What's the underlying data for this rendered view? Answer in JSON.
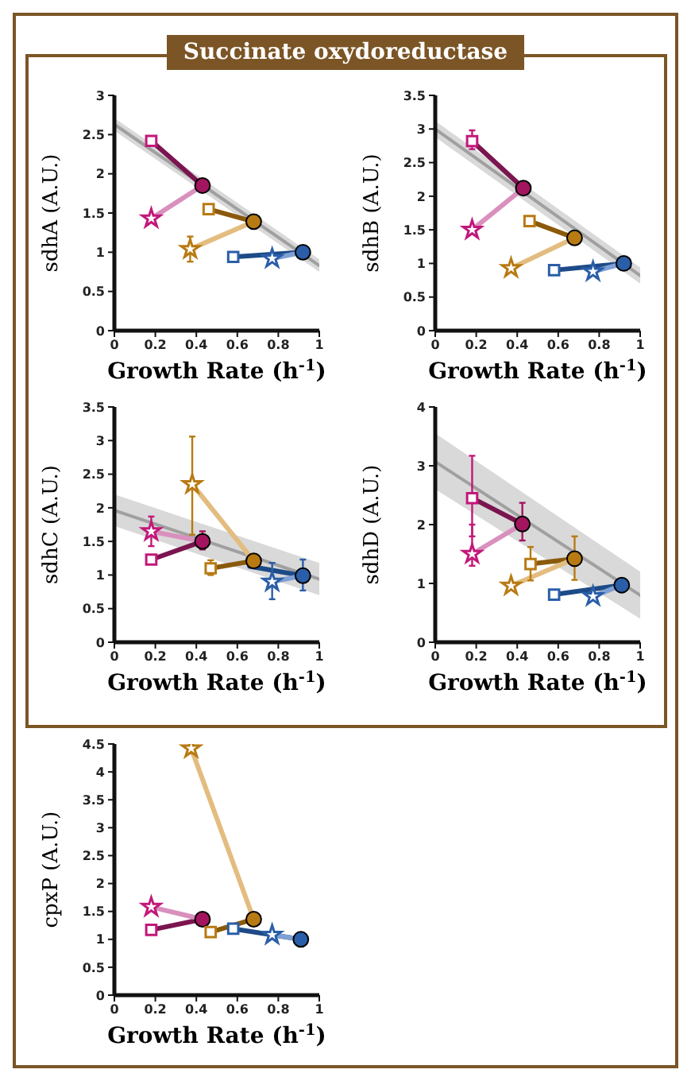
{
  "chart_data": [
    {
      "type": "line",
      "title": "Succinate oxydoreductase",
      "xlabel": "Growth Rate (h$^{-1}$)",
      "ylabel": "sdhA (A.U.)",
      "xlim": [
        0,
        1
      ],
      "xticks": [
        0,
        0.2,
        0.4,
        0.6,
        0.8,
        1
      ],
      "ylim": [
        0,
        3
      ],
      "yticks": [
        0,
        0.5,
        1,
        1.5,
        2,
        2.5,
        3
      ],
      "grid": false,
      "legend": false,
      "series": [
        {
          "x": [
            0,
            1
          ],
          "values": [
            2.63,
            0.83
          ],
          "lower": [
            2.55,
            0.75
          ],
          "upper": [
            2.71,
            0.91
          ],
          "color": "#a0a0a0",
          "marker": "none"
        },
        {
          "type": "line",
          "x": [
            0.43,
            0.18
          ],
          "values": [
            1.85,
            2.42
          ],
          "color": "#7b1550",
          "marker": "none"
        },
        {
          "type": "line",
          "x": [
            0.43,
            0.18
          ],
          "values": [
            1.85,
            1.43
          ],
          "color": "#d990bd",
          "marker": "none"
        },
        {
          "type": "line",
          "x": [
            0.68,
            0.46
          ],
          "values": [
            1.39,
            1.55
          ],
          "color": "#8a5a0c",
          "marker": "none"
        },
        {
          "type": "line",
          "x": [
            0.68,
            0.37
          ],
          "values": [
            1.39,
            1.04
          ],
          "color": "#e3bd80",
          "marker": "none"
        },
        {
          "type": "line",
          "x": [
            0.92,
            0.58
          ],
          "values": [
            1.0,
            0.94
          ],
          "color": "#1e4b87",
          "marker": "none"
        },
        {
          "type": "line",
          "x": [
            0.92,
            0.77
          ],
          "values": [
            1.0,
            0.92
          ],
          "color": "#7fa0d4",
          "marker": "none"
        },
        {
          "type": "scatter",
          "x": [
            0.43,
            0.68,
            0.92
          ],
          "values": [
            1.85,
            1.39,
            1.0
          ],
          "colors": [
            "#a3155f",
            "#b87a12",
            "#2a5ea8"
          ],
          "marker": "circle"
        },
        {
          "type": "scatter",
          "x": [
            0.18,
            0.46,
            0.58
          ],
          "values": [
            2.42,
            1.55,
            0.94
          ],
          "colors": [
            "#c2187a",
            "#b87a12",
            "#2a5ea8"
          ],
          "marker": "square"
        },
        {
          "type": "scatter",
          "x": [
            0.18,
            0.37,
            0.77
          ],
          "values": [
            1.43,
            1.04,
            0.92
          ],
          "colors": [
            "#c2187a",
            "#b87a12",
            "#2a5ea8"
          ],
          "marker": "star",
          "errors": [
            null,
            [
              0.88,
              1.2
            ],
            null
          ]
        }
      ]
    },
    {
      "type": "line",
      "xlabel": "Growth Rate (h$^{-1}$)",
      "ylabel": "sdhB (A.U.)",
      "xlim": [
        0,
        1
      ],
      "xticks": [
        0,
        0.2,
        0.4,
        0.6,
        0.8,
        1
      ],
      "ylim": [
        0,
        3.5
      ],
      "yticks": [
        0,
        0.5,
        1,
        1.5,
        2,
        2.5,
        3,
        3.5
      ],
      "grid": false,
      "legend": false,
      "series": [
        {
          "x": [
            0,
            1
          ],
          "values": [
            3.0,
            0.82
          ],
          "lower": [
            2.88,
            0.7
          ],
          "upper": [
            3.12,
            0.94
          ],
          "color": "#a0a0a0",
          "marker": "none"
        },
        {
          "type": "line",
          "x": [
            0.43,
            0.18
          ],
          "values": [
            2.12,
            2.82
          ],
          "color": "#7b1550",
          "marker": "none"
        },
        {
          "type": "line",
          "x": [
            0.43,
            0.18
          ],
          "values": [
            2.12,
            1.5
          ],
          "color": "#d990bd",
          "marker": "none"
        },
        {
          "type": "line",
          "x": [
            0.68,
            0.46
          ],
          "values": [
            1.38,
            1.63
          ],
          "color": "#8a5a0c",
          "marker": "none"
        },
        {
          "type": "line",
          "x": [
            0.68,
            0.37
          ],
          "values": [
            1.38,
            0.93
          ],
          "color": "#e3bd80",
          "marker": "none"
        },
        {
          "type": "line",
          "x": [
            0.92,
            0.58
          ],
          "values": [
            1.0,
            0.9
          ],
          "color": "#1e4b87",
          "marker": "none"
        },
        {
          "type": "line",
          "x": [
            0.92,
            0.77
          ],
          "values": [
            1.0,
            0.88
          ],
          "color": "#7fa0d4",
          "marker": "none"
        },
        {
          "type": "scatter",
          "x": [
            0.43,
            0.68,
            0.92
          ],
          "values": [
            2.12,
            1.38,
            1.0
          ],
          "colors": [
            "#a3155f",
            "#b87a12",
            "#2a5ea8"
          ],
          "marker": "circle"
        },
        {
          "type": "scatter",
          "x": [
            0.18,
            0.46,
            0.58
          ],
          "values": [
            2.82,
            1.63,
            0.9
          ],
          "colors": [
            "#c2187a",
            "#b87a12",
            "#2a5ea8"
          ],
          "marker": "square",
          "errors": [
            [
              2.7,
              2.98
            ],
            null,
            null
          ]
        },
        {
          "type": "scatter",
          "x": [
            0.18,
            0.37,
            0.77
          ],
          "values": [
            1.5,
            0.93,
            0.88
          ],
          "colors": [
            "#c2187a",
            "#b87a12",
            "#2a5ea8"
          ],
          "marker": "star"
        }
      ]
    },
    {
      "type": "line",
      "xlabel": "Growth Rate (h$^{-1}$)",
      "ylabel": "sdhC (A.U.)",
      "xlim": [
        0,
        1
      ],
      "xticks": [
        0,
        0.2,
        0.4,
        0.6,
        0.8,
        1
      ],
      "ylim": [
        0,
        3.5
      ],
      "yticks": [
        0,
        0.5,
        1,
        1.5,
        2,
        2.5,
        3,
        3.5
      ],
      "grid": false,
      "legend": false,
      "series": [
        {
          "x": [
            0,
            1
          ],
          "values": [
            1.96,
            0.94
          ],
          "lower": [
            1.73,
            0.7
          ],
          "upper": [
            2.2,
            1.18
          ],
          "color": "#a0a0a0",
          "marker": "none"
        },
        {
          "type": "line",
          "x": [
            0.43,
            0.18
          ],
          "values": [
            1.5,
            1.23
          ],
          "color": "#7b1550",
          "marker": "none"
        },
        {
          "type": "line",
          "x": [
            0.43,
            0.18
          ],
          "values": [
            1.5,
            1.65
          ],
          "color": "#d990bd",
          "marker": "none"
        },
        {
          "type": "line",
          "x": [
            0.68,
            0.47
          ],
          "values": [
            1.21,
            1.1
          ],
          "color": "#8a5a0c",
          "marker": "none"
        },
        {
          "type": "line",
          "x": [
            0.68,
            0.38
          ],
          "values": [
            1.21,
            2.35
          ],
          "color": "#e3bd80",
          "marker": "none"
        },
        {
          "type": "line",
          "x": [
            0.92,
            0.66
          ],
          "values": [
            0.99,
            1.13
          ],
          "color": "#1e4b87",
          "marker": "none"
        },
        {
          "type": "line",
          "x": [
            0.92,
            0.77
          ],
          "values": [
            0.99,
            0.9
          ],
          "color": "#7fa0d4",
          "marker": "none"
        },
        {
          "type": "scatter",
          "x": [
            0.43,
            0.68,
            0.92
          ],
          "values": [
            1.5,
            1.21,
            0.99
          ],
          "colors": [
            "#a3155f",
            "#b87a12",
            "#2a5ea8"
          ],
          "marker": "circle",
          "errors": [
            [
              1.38,
              1.65
            ],
            null,
            [
              0.77,
              1.23
            ]
          ]
        },
        {
          "type": "scatter",
          "x": [
            0.18,
            0.47
          ],
          "values": [
            1.23,
            1.1
          ],
          "colors": [
            "#c2187a",
            "#b87a12"
          ],
          "marker": "square",
          "errors": [
            null,
            [
              1.0,
              1.22
            ]
          ]
        },
        {
          "type": "scatter",
          "x": [
            0.18,
            0.38,
            0.77
          ],
          "values": [
            1.65,
            2.35,
            0.9
          ],
          "colors": [
            "#c2187a",
            "#b87a12",
            "#2a5ea8"
          ],
          "marker": "star",
          "errors": [
            [
              1.43,
              1.87
            ],
            [
              1.6,
              3.06
            ],
            [
              0.64,
              1.18
            ]
          ]
        }
      ]
    },
    {
      "type": "line",
      "xlabel": "Growth Rate (h$^{-1}$)",
      "ylabel": "sdhD (A.U.)",
      "xlim": [
        0,
        1
      ],
      "xticks": [
        0,
        0.2,
        0.4,
        0.6,
        0.8,
        1
      ],
      "ylim": [
        0,
        4
      ],
      "yticks": [
        0,
        1,
        2,
        3,
        4
      ],
      "grid": false,
      "legend": false,
      "series": [
        {
          "x": [
            0,
            1
          ],
          "values": [
            3.07,
            0.8
          ],
          "lower": [
            2.6,
            0.4
          ],
          "upper": [
            3.55,
            1.2
          ],
          "color": "#a0a0a0",
          "marker": "none"
        },
        {
          "type": "line",
          "x": [
            0.425,
            0.18
          ],
          "values": [
            2.01,
            2.45
          ],
          "color": "#7b1550",
          "marker": "none"
        },
        {
          "type": "line",
          "x": [
            0.425,
            0.18
          ],
          "values": [
            2.01,
            1.5
          ],
          "color": "#d990bd",
          "marker": "none"
        },
        {
          "type": "line",
          "x": [
            0.68,
            0.465
          ],
          "values": [
            1.42,
            1.33
          ],
          "color": "#8a5a0c",
          "marker": "none"
        },
        {
          "type": "line",
          "x": [
            0.68,
            0.37
          ],
          "values": [
            1.42,
            0.96
          ],
          "color": "#e3bd80",
          "marker": "none"
        },
        {
          "type": "line",
          "x": [
            0.91,
            0.58
          ],
          "values": [
            0.97,
            0.81
          ],
          "color": "#1e4b87",
          "marker": "none"
        },
        {
          "type": "line",
          "x": [
            0.91,
            0.77
          ],
          "values": [
            0.97,
            0.78
          ],
          "color": "#7fa0d4",
          "marker": "none"
        },
        {
          "type": "scatter",
          "x": [
            0.425,
            0.68,
            0.91
          ],
          "values": [
            2.01,
            1.42,
            0.97
          ],
          "colors": [
            "#a3155f",
            "#b87a12",
            "#2a5ea8"
          ],
          "marker": "circle",
          "errors": [
            [
              1.73,
              2.37
            ],
            [
              1.06,
              1.8
            ],
            null
          ]
        },
        {
          "type": "scatter",
          "x": [
            0.18,
            0.465,
            0.58
          ],
          "values": [
            2.45,
            1.33,
            0.81
          ],
          "colors": [
            "#c2187a",
            "#b87a12",
            "#2a5ea8"
          ],
          "marker": "square",
          "errors": [
            [
              1.8,
              3.17
            ],
            [
              1.05,
              1.62
            ],
            null
          ]
        },
        {
          "type": "scatter",
          "x": [
            0.18,
            0.37,
            0.77
          ],
          "values": [
            1.5,
            0.96,
            0.78
          ],
          "colors": [
            "#c2187a",
            "#b87a12",
            "#2a5ea8"
          ],
          "marker": "star",
          "errors": [
            [
              1.3,
              2.0
            ],
            null,
            null
          ]
        }
      ]
    },
    {
      "type": "line",
      "xlabel": "Growth Rate (h$^{-1}$)",
      "ylabel": "cpxP (A.U.)",
      "xlim": [
        0,
        1
      ],
      "xticks": [
        0,
        0.2,
        0.4,
        0.6,
        0.8,
        1
      ],
      "ylim": [
        0,
        4.5
      ],
      "yticks": [
        0,
        0.5,
        1,
        1.5,
        2,
        2.5,
        3,
        3.5,
        4,
        4.5
      ],
      "grid": false,
      "legend": false,
      "series": [
        {
          "type": "line",
          "x": [
            0.43,
            0.18
          ],
          "values": [
            1.36,
            1.17
          ],
          "color": "#7b1550",
          "marker": "none"
        },
        {
          "type": "line",
          "x": [
            0.43,
            0.18
          ],
          "values": [
            1.36,
            1.58
          ],
          "color": "#d990bd",
          "marker": "none"
        },
        {
          "type": "line",
          "x": [
            0.68,
            0.47
          ],
          "values": [
            1.36,
            1.13
          ],
          "color": "#8a5a0c",
          "marker": "none"
        },
        {
          "type": "line",
          "x": [
            0.68,
            0.375
          ],
          "values": [
            1.36,
            4.42
          ],
          "color": "#e3bd80",
          "marker": "none"
        },
        {
          "type": "line",
          "x": [
            0.91,
            0.58
          ],
          "values": [
            1.0,
            1.19
          ],
          "color": "#1e4b87",
          "marker": "none"
        },
        {
          "type": "line",
          "x": [
            0.91,
            0.77
          ],
          "values": [
            1.0,
            1.08
          ],
          "color": "#7fa0d4",
          "marker": "none"
        },
        {
          "type": "scatter",
          "x": [
            0.43,
            0.68,
            0.91
          ],
          "values": [
            1.36,
            1.36,
            1.0
          ],
          "colors": [
            "#a3155f",
            "#b87a12",
            "#2a5ea8"
          ],
          "marker": "circle"
        },
        {
          "type": "scatter",
          "x": [
            0.18,
            0.47,
            0.58
          ],
          "values": [
            1.17,
            1.13,
            1.19
          ],
          "colors": [
            "#c2187a",
            "#b87a12",
            "#2a5ea8"
          ],
          "marker": "square"
        },
        {
          "type": "scatter",
          "x": [
            0.18,
            0.375,
            0.77
          ],
          "values": [
            1.58,
            4.42,
            1.08
          ],
          "colors": [
            "#c2187a",
            "#b87a12",
            "#2a5ea8"
          ],
          "marker": "star"
        }
      ]
    }
  ]
}
